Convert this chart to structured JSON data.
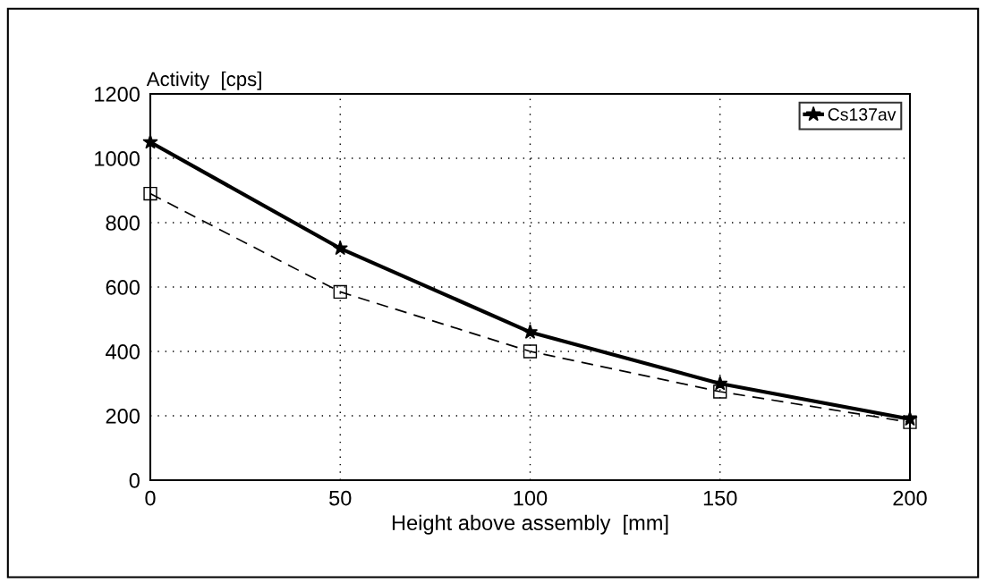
{
  "chart_data": {
    "type": "line",
    "ylabel": "Activity  [cps]",
    "xlabel": "Height above assembly  [mm]",
    "x": [
      0,
      50,
      100,
      150,
      200
    ],
    "series": [
      {
        "name": "Cs137av",
        "color": "#000000",
        "values": [
          1050,
          720,
          460,
          300,
          190
        ],
        "marker": "star",
        "line_style": "solid"
      },
      {
        "color": "#000000",
        "values": [
          890,
          585,
          400,
          275,
          180
        ],
        "marker": "square",
        "line_style": "dashed"
      }
    ],
    "xlim": [
      0,
      200
    ],
    "xticks": [
      0,
      50,
      100,
      150,
      200
    ],
    "ylim": [
      0,
      1200
    ],
    "yticks": [
      0,
      200,
      400,
      600,
      800,
      1000,
      1200
    ],
    "grid": true,
    "legend": "top right"
  }
}
